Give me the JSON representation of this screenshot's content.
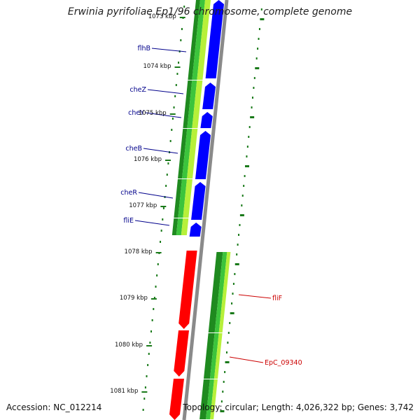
{
  "title": "Erwinia pyrifoliae Ep1/96 chromosome, complete genome",
  "accession": "Accession: NC_012214",
  "topology": "Topology: circular; Length: 4,026,322 bp; Genes: 3,742",
  "colors": {
    "forward_cds": "#0000ff",
    "reverse_cds": "#ff0000",
    "gc_dark": "#1f8a1f",
    "gc_mid": "#3cc43c",
    "gc_light": "#b7f03a",
    "backbone": "#8a8a8a",
    "scale_tick": "#1a7a1a",
    "forward_label": "#00008b",
    "reverse_label": "#cc0000"
  },
  "scale_labels": [
    {
      "text": "1073 kbp"
    },
    {
      "text": "1074 kbp"
    },
    {
      "text": "1075 kbp"
    },
    {
      "text": "1076 kbp"
    },
    {
      "text": "1077 kbp"
    },
    {
      "text": "1078 kbp"
    },
    {
      "text": "1079 kbp"
    },
    {
      "text": "1080 kbp"
    },
    {
      "text": "1081 kbp"
    }
  ],
  "forward_genes": [
    {
      "name": "flhB"
    },
    {
      "name": "cheZ"
    },
    {
      "name": "cheY"
    },
    {
      "name": "cheB"
    },
    {
      "name": "cheR"
    },
    {
      "name": "fliE"
    }
  ],
  "reverse_genes": [
    {
      "name": "fliF"
    },
    {
      "name": "EpC_09340"
    }
  ]
}
